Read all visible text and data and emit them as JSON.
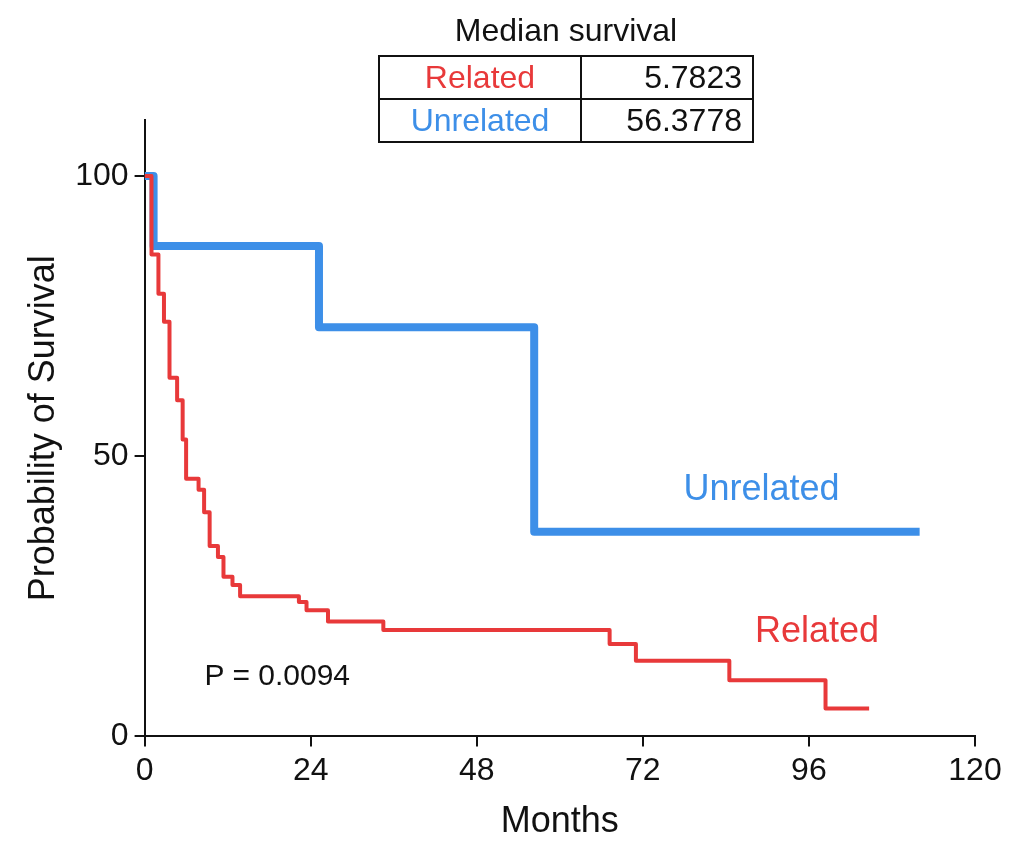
{
  "chart_data": {
    "type": "step",
    "xlabel": "Months",
    "ylabel": "Probability of Survival",
    "legend_title": "Median survival",
    "xlim": [
      0,
      120
    ],
    "xticks": [
      0,
      24,
      48,
      72,
      96,
      120
    ],
    "ylim": [
      0,
      110
    ],
    "yticks": [
      0,
      50,
      100
    ],
    "grid": false,
    "legend": false,
    "marker": "none",
    "line_style": "solid",
    "annotations": [
      "5.7823",
      "56.3778",
      "P = 0.0094"
    ],
    "series": [
      {
        "name": "Related",
        "color": "#e8393a",
        "x": [
          0,
          1,
          2,
          2.8,
          3.6,
          4.7,
          5.5,
          6,
          7.8,
          8.6,
          9.4,
          10.6,
          11.4,
          12.7,
          13.8,
          22.3,
          23.4,
          26.5,
          34.5,
          67.2,
          71,
          84.5,
          98.4,
          104.7
        ],
        "values": [
          100,
          86,
          79,
          74,
          64,
          60,
          53,
          46,
          44,
          40,
          34,
          32,
          28.5,
          27,
          25,
          24,
          22.5,
          20.5,
          19,
          16.5,
          13.5,
          10,
          5,
          5
        ]
      },
      {
        "name": "Unrelated",
        "color": "#3d8fe8",
        "x": [
          0,
          1.3,
          25.2,
          56.3,
          112
        ],
        "values": [
          100,
          87.5,
          73,
          36.5,
          36.5
        ]
      }
    ]
  }
}
